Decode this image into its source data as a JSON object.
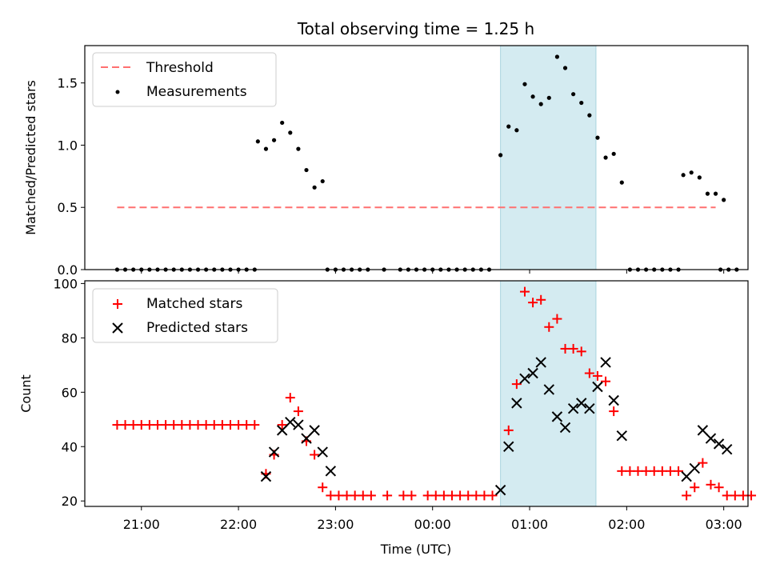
{
  "chart_data": {
    "type": "scatter",
    "title": "Total observing time = 1.25 h",
    "xlabel": "Time (UTC)",
    "x_ticks": [
      "21:00",
      "22:00",
      "23:00",
      "00:00",
      "01:00",
      "02:00",
      "03:00"
    ],
    "x_range": [
      "20:25",
      "03:15"
    ],
    "shaded_interval": [
      "00:42",
      "01:41"
    ],
    "shaded_color": "#d4ebf1",
    "top_panel": {
      "ylabel": "Matched/Predicted stars",
      "ylim": [
        0,
        1.8
      ],
      "y_ticks": [
        "0.0",
        "0.5",
        "1.0",
        "1.5"
      ],
      "series": [
        {
          "name": "Threshold",
          "kind": "dashed-line",
          "color": "#ff7070",
          "points": [
            [
              "20:45",
              0.5
            ],
            [
              "02:55",
              0.5
            ]
          ]
        },
        {
          "name": "Measurements",
          "kind": "dot",
          "color": "#000000",
          "points": [
            [
              "20:45",
              0
            ],
            [
              "20:50",
              0
            ],
            [
              "20:55",
              0
            ],
            [
              "21:00",
              0
            ],
            [
              "21:05",
              0
            ],
            [
              "21:10",
              0
            ],
            [
              "21:15",
              0
            ],
            [
              "21:20",
              0
            ],
            [
              "21:25",
              0
            ],
            [
              "21:30",
              0
            ],
            [
              "21:35",
              0
            ],
            [
              "21:40",
              0
            ],
            [
              "21:45",
              0
            ],
            [
              "21:50",
              0
            ],
            [
              "21:55",
              0
            ],
            [
              "22:00",
              0
            ],
            [
              "22:05",
              0
            ],
            [
              "22:10",
              0
            ],
            [
              "22:12",
              1.03
            ],
            [
              "22:17",
              0.97
            ],
            [
              "22:22",
              1.04
            ],
            [
              "22:27",
              1.18
            ],
            [
              "22:32",
              1.1
            ],
            [
              "22:37",
              0.97
            ],
            [
              "22:42",
              0.8
            ],
            [
              "22:47",
              0.66
            ],
            [
              "22:52",
              0.71
            ],
            [
              "22:55",
              0
            ],
            [
              "23:00",
              0
            ],
            [
              "23:05",
              0
            ],
            [
              "23:10",
              0
            ],
            [
              "23:15",
              0
            ],
            [
              "23:20",
              0
            ],
            [
              "23:30",
              0
            ],
            [
              "23:40",
              0
            ],
            [
              "23:45",
              0
            ],
            [
              "23:50",
              0
            ],
            [
              "23:55",
              0
            ],
            [
              "00:00",
              0
            ],
            [
              "00:05",
              0
            ],
            [
              "00:10",
              0
            ],
            [
              "00:15",
              0
            ],
            [
              "00:20",
              0
            ],
            [
              "00:25",
              0
            ],
            [
              "00:30",
              0
            ],
            [
              "00:35",
              0
            ],
            [
              "00:42",
              0.92
            ],
            [
              "00:47",
              1.15
            ],
            [
              "00:52",
              1.12
            ],
            [
              "00:57",
              1.49
            ],
            [
              "01:02",
              1.39
            ],
            [
              "01:07",
              1.33
            ],
            [
              "01:12",
              1.38
            ],
            [
              "01:17",
              1.71
            ],
            [
              "01:22",
              1.62
            ],
            [
              "01:27",
              1.41
            ],
            [
              "01:32",
              1.34
            ],
            [
              "01:37",
              1.24
            ],
            [
              "01:42",
              1.06
            ],
            [
              "01:47",
              0.9
            ],
            [
              "01:52",
              0.93
            ],
            [
              "01:57",
              0.7
            ],
            [
              "02:02",
              0
            ],
            [
              "02:07",
              0
            ],
            [
              "02:12",
              0
            ],
            [
              "02:17",
              0
            ],
            [
              "02:22",
              0
            ],
            [
              "02:27",
              0
            ],
            [
              "02:32",
              0
            ],
            [
              "02:35",
              0.76
            ],
            [
              "02:40",
              0.78
            ],
            [
              "02:45",
              0.74
            ],
            [
              "02:50",
              0.61
            ],
            [
              "02:55",
              0.61
            ],
            [
              "03:00",
              0.56
            ],
            [
              "02:58",
              0
            ],
            [
              "03:03",
              0
            ],
            [
              "03:08",
              0
            ]
          ]
        }
      ],
      "legend": {
        "position": "upper-left"
      }
    },
    "bottom_panel": {
      "ylabel": "Count",
      "ylim": [
        18,
        101
      ],
      "y_ticks": [
        "20",
        "40",
        "60",
        "80",
        "100"
      ],
      "series": [
        {
          "name": "Matched stars",
          "kind": "plus",
          "color": "#ff0000",
          "points": [
            [
              "20:45",
              48
            ],
            [
              "20:50",
              48
            ],
            [
              "20:55",
              48
            ],
            [
              "21:00",
              48
            ],
            [
              "21:05",
              48
            ],
            [
              "21:10",
              48
            ],
            [
              "21:15",
              48
            ],
            [
              "21:20",
              48
            ],
            [
              "21:25",
              48
            ],
            [
              "21:30",
              48
            ],
            [
              "21:35",
              48
            ],
            [
              "21:40",
              48
            ],
            [
              "21:45",
              48
            ],
            [
              "21:50",
              48
            ],
            [
              "21:55",
              48
            ],
            [
              "22:00",
              48
            ],
            [
              "22:05",
              48
            ],
            [
              "22:10",
              48
            ],
            [
              "22:17",
              30
            ],
            [
              "22:22",
              37
            ],
            [
              "22:27",
              48
            ],
            [
              "22:32",
              58
            ],
            [
              "22:37",
              53
            ],
            [
              "22:42",
              42
            ],
            [
              "22:47",
              37
            ],
            [
              "22:52",
              25
            ],
            [
              "22:57",
              22
            ],
            [
              "23:02",
              22
            ],
            [
              "23:07",
              22
            ],
            [
              "23:12",
              22
            ],
            [
              "23:17",
              22
            ],
            [
              "23:22",
              22
            ],
            [
              "23:32",
              22
            ],
            [
              "23:42",
              22
            ],
            [
              "23:47",
              22
            ],
            [
              "23:57",
              22
            ],
            [
              "00:02",
              22
            ],
            [
              "00:07",
              22
            ],
            [
              "00:12",
              22
            ],
            [
              "00:17",
              22
            ],
            [
              "00:22",
              22
            ],
            [
              "00:27",
              22
            ],
            [
              "00:32",
              22
            ],
            [
              "00:37",
              22
            ],
            [
              "00:47",
              46
            ],
            [
              "00:52",
              63
            ],
            [
              "00:57",
              97
            ],
            [
              "01:02",
              93
            ],
            [
              "01:07",
              94
            ],
            [
              "01:12",
              84
            ],
            [
              "01:17",
              87
            ],
            [
              "01:22",
              76
            ],
            [
              "01:27",
              76
            ],
            [
              "01:32",
              75
            ],
            [
              "01:37",
              67
            ],
            [
              "01:42",
              66
            ],
            [
              "01:47",
              64
            ],
            [
              "01:52",
              53
            ],
            [
              "01:57",
              31
            ],
            [
              "02:02",
              31
            ],
            [
              "02:07",
              31
            ],
            [
              "02:12",
              31
            ],
            [
              "02:17",
              31
            ],
            [
              "02:22",
              31
            ],
            [
              "02:27",
              31
            ],
            [
              "02:32",
              31
            ],
            [
              "02:37",
              22
            ],
            [
              "02:42",
              25
            ],
            [
              "02:47",
              34
            ],
            [
              "02:52",
              26
            ],
            [
              "02:57",
              25
            ],
            [
              "03:02",
              22
            ],
            [
              "03:07",
              22
            ],
            [
              "03:12",
              22
            ],
            [
              "03:17",
              22
            ]
          ]
        },
        {
          "name": "Predicted stars",
          "kind": "cross",
          "color": "#000000",
          "points": [
            [
              "22:17",
              29
            ],
            [
              "22:22",
              38
            ],
            [
              "22:27",
              46
            ],
            [
              "22:32",
              49
            ],
            [
              "22:37",
              48
            ],
            [
              "22:42",
              43
            ],
            [
              "22:47",
              46
            ],
            [
              "22:52",
              38
            ],
            [
              "22:57",
              31
            ],
            [
              "00:42",
              24
            ],
            [
              "00:47",
              40
            ],
            [
              "00:52",
              56
            ],
            [
              "00:57",
              65
            ],
            [
              "01:02",
              67
            ],
            [
              "01:07",
              71
            ],
            [
              "01:12",
              61
            ],
            [
              "01:17",
              51
            ],
            [
              "01:22",
              47
            ],
            [
              "01:27",
              54
            ],
            [
              "01:32",
              56
            ],
            [
              "01:37",
              54
            ],
            [
              "01:42",
              62
            ],
            [
              "01:47",
              71
            ],
            [
              "01:52",
              57
            ],
            [
              "01:57",
              44
            ],
            [
              "02:37",
              29
            ],
            [
              "02:42",
              32
            ],
            [
              "02:47",
              46
            ],
            [
              "02:52",
              43
            ],
            [
              "02:57",
              41
            ],
            [
              "03:02",
              39
            ]
          ]
        }
      ],
      "legend": {
        "position": "upper-left"
      }
    }
  }
}
